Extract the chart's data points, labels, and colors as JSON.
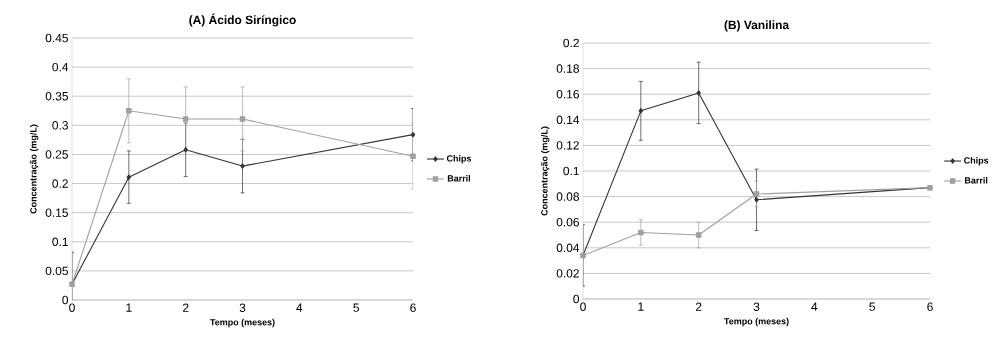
{
  "chart_data": [
    {
      "type": "line",
      "title": "(A) Ácido Siríngico",
      "xlabel": "Tempo (meses)",
      "ylabel": "Concentração (mg/L)",
      "x": [
        0,
        1,
        2,
        3,
        6
      ],
      "xlim": [
        0,
        6
      ],
      "xticks": [
        0,
        1,
        2,
        3,
        4,
        5,
        6
      ],
      "ylim": [
        0,
        0.45
      ],
      "yticks": [
        0,
        0.05,
        0.1,
        0.15,
        0.2,
        0.25,
        0.3,
        0.35,
        0.4,
        0.45
      ],
      "grid": "y",
      "legend": "right",
      "series": [
        {
          "name": "Chips",
          "color": "#333333",
          "marker": "diamond",
          "values": [
            0.027,
            0.211,
            0.258,
            0.23,
            0.284
          ],
          "errors": [
            0.055,
            0.045,
            0.046,
            0.046,
            0.045
          ]
        },
        {
          "name": "Barril",
          "color": "#a0a0a0",
          "marker": "square",
          "values": [
            0.027,
            0.325,
            0.311,
            0.311,
            0.247
          ],
          "errors": [
            null,
            0.055,
            0.055,
            0.055,
            0.056
          ]
        }
      ]
    },
    {
      "type": "line",
      "title": "(B) Vanilina",
      "xlabel": "Tempo (meses)",
      "ylabel": "Concentração (mg/L)",
      "x": [
        0,
        1,
        2,
        3,
        6
      ],
      "xlim": [
        0,
        6
      ],
      "xticks": [
        0,
        1,
        2,
        3,
        4,
        5,
        6
      ],
      "ylim": [
        0,
        0.2
      ],
      "yticks": [
        0,
        0.02,
        0.04,
        0.06,
        0.08,
        0.1,
        0.12,
        0.14,
        0.16,
        0.18,
        0.2
      ],
      "grid": "y",
      "legend": "right",
      "series": [
        {
          "name": "Chips",
          "color": "#333333",
          "marker": "diamond",
          "values": [
            0.034,
            0.147,
            0.161,
            0.0775,
            0.087
          ],
          "errors": [
            0.024,
            0.023,
            0.024,
            0.024,
            null
          ]
        },
        {
          "name": "Barril",
          "color": "#a0a0a0",
          "marker": "square",
          "values": [
            0.034,
            0.052,
            0.05,
            0.082,
            0.087
          ],
          "errors": [
            null,
            0.01,
            0.01,
            0.01,
            null
          ]
        }
      ]
    }
  ]
}
